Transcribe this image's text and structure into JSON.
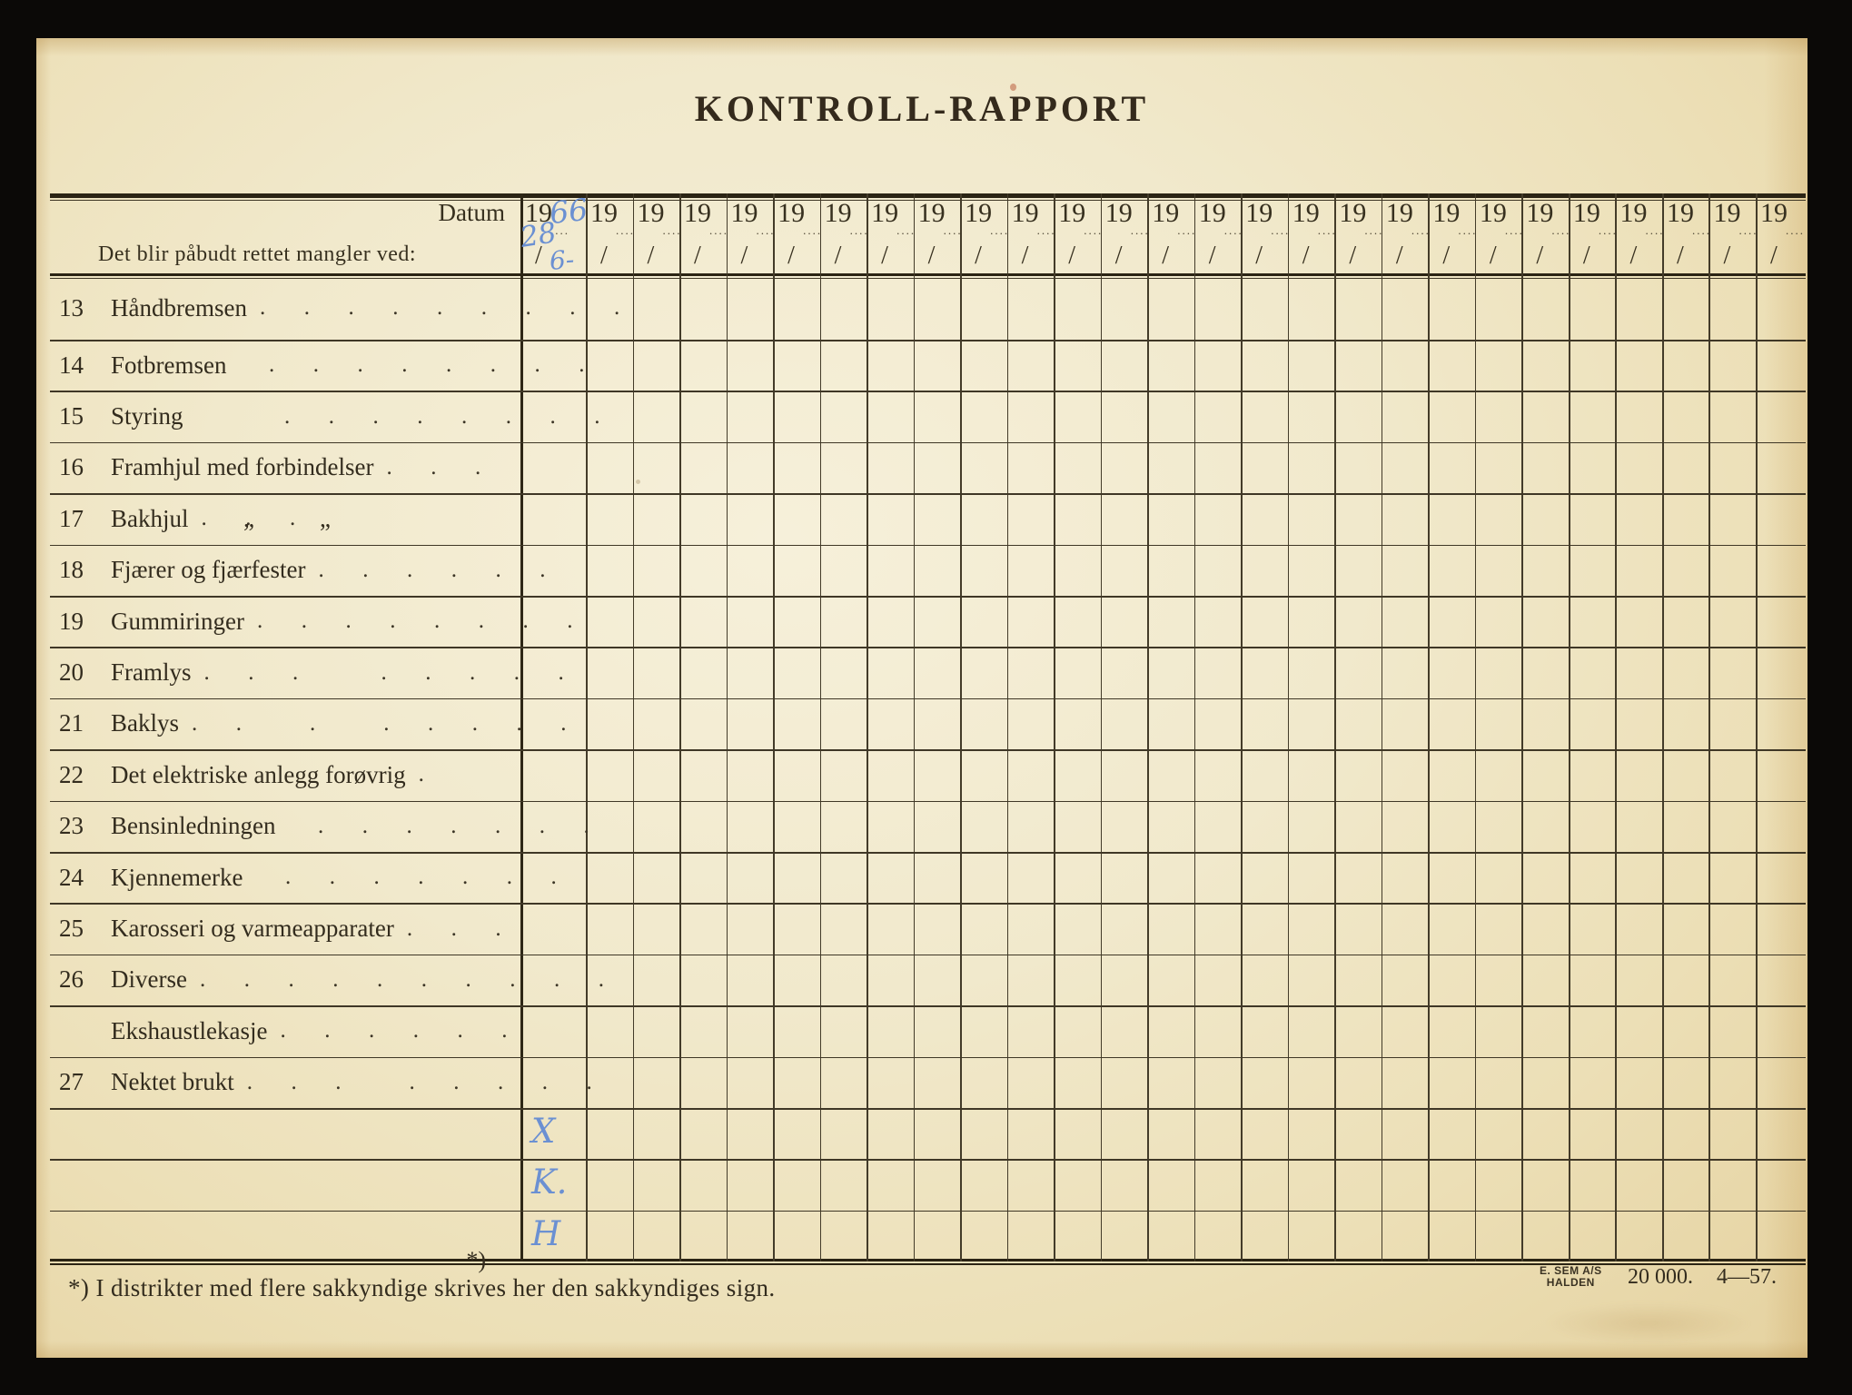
{
  "title": "KONTROLL-RAPPORT",
  "table": {
    "datum_label": "Datum",
    "left_header": "Det blir påbudt rettet mangler ved:",
    "columns": {
      "count": 27,
      "year_prefix": "19",
      "tail_dots": "....",
      "day_slash": "/"
    },
    "handwriting": {
      "year_suffix": "66",
      "day": "28",
      "month": "6-"
    },
    "rows": [
      {
        "num": "13",
        "label": "Håndbremsen",
        "dots": ".  .  .  .  .  .  .  .  ."
      },
      {
        "num": "14",
        "label": "Fotbremsen",
        "dots": "  .  .  .  .  .  .  .  ."
      },
      {
        "num": "15",
        "label": "Styring",
        "dots": "      .  .  .  .  .  .  .  ."
      },
      {
        "num": "16",
        "label": "Framhjul med forbindelser",
        "dots": ".  .  ."
      },
      {
        "num": "17",
        "label": "Bakhjul",
        "ditto": "„",
        "ditto2": "„",
        "dots": ".  .  ."
      },
      {
        "num": "18",
        "label": "Fjærer og fjærfester",
        "dots": ".  .  .  .  .  ."
      },
      {
        "num": "19",
        "label": "Gummiringer",
        "dots": ".  .  .  .  .  .  .  ."
      },
      {
        "num": "20",
        "label": "Framlys",
        "dots": ".  .  .     .  .  .  .  ."
      },
      {
        "num": "21",
        "label": "Baklys",
        "dots": ".  .    .    .  .  .  .  ."
      },
      {
        "num": "22",
        "label": "Det elektriske anlegg forøvrig",
        "dots": "."
      },
      {
        "num": "23",
        "label": "Bensinledningen",
        "dots": "  .  .  .  .  .  .  ."
      },
      {
        "num": "24",
        "label": "Kjennemerke",
        "dots": "  .  .  .  .  .  .  ."
      },
      {
        "num": "25",
        "label": "Karosseri og varmeapparater",
        "dots": ".  .  ."
      },
      {
        "num": "26",
        "label": "Diverse",
        "dots": ".  .  .  .  .  .  .  .  .  ."
      },
      {
        "num": "",
        "label": "Ekshaustlekasje",
        "dots": ".  .  .  .  .  ."
      },
      {
        "num": "27",
        "label": "Nektet brukt",
        "dots": ".  .  .    .  .  .  .  ."
      },
      {
        "num": "",
        "label": "",
        "dots": ""
      },
      {
        "num": "",
        "label": "",
        "dots": ""
      },
      {
        "num": "",
        "label": "",
        "dots": "",
        "footnote_ref": "*)"
      }
    ],
    "marks": [
      {
        "row_index": 16,
        "text": "X"
      },
      {
        "row_index": 17,
        "text": "K."
      },
      {
        "row_index": 18,
        "text": "H"
      }
    ]
  },
  "footer": {
    "footnote": "*)   I distrikter med flere sakkyndige skrives her den sakkyndiges sign.",
    "printer_name": "E. SEM A/S",
    "printer_city": "HALDEN",
    "print_run": "20 000.",
    "print_date": "4—57."
  },
  "colors": {
    "background": "#0b0907",
    "paper": "#f1e9cc",
    "ink": "#332c1e",
    "grid_line": "#3f3726",
    "handwriting_blue": "#6b90d2"
  }
}
